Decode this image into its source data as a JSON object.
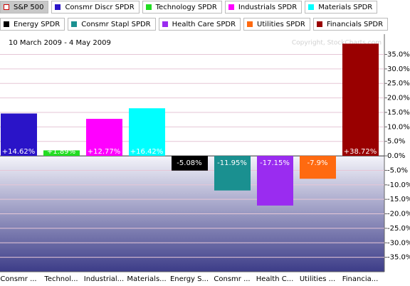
{
  "chart_data": {
    "type": "bar",
    "subtitle": "10 March 2009 - 4 May 2009",
    "watermark": "Copyright, StockCharts.com",
    "legend": [
      {
        "name": "S&P 500",
        "color": "#cc0000",
        "hollow": true,
        "selected": true
      },
      {
        "name": "Consmr Discr SPDR",
        "color": "#2a14c8"
      },
      {
        "name": "Technology SPDR",
        "color": "#22dd22"
      },
      {
        "name": "Industrials SPDR",
        "color": "#ff00ff"
      },
      {
        "name": "Materials SPDR",
        "color": "#00ffff"
      },
      {
        "name": "Energy SPDR",
        "color": "#000000"
      },
      {
        "name": "Consmr Stapl SPDR",
        "color": "#1a9090"
      },
      {
        "name": "Health Care SPDR",
        "color": "#9a2cf0"
      },
      {
        "name": "Utilities SPDR",
        "color": "#ff6a10"
      },
      {
        "name": "Financials SPDR",
        "color": "#990000"
      }
    ],
    "categories": [
      "Consmr ...",
      "Technol...",
      "Industrial...",
      "Materials...",
      "Energy S...",
      "Consmr ...",
      "Health C...",
      "Utilities ...",
      "Financia..."
    ],
    "values": [
      14.62,
      1.89,
      12.77,
      16.42,
      -5.08,
      -11.95,
      -17.15,
      -7.9,
      38.72
    ],
    "value_labels": [
      "+14.62%",
      "+1.89%",
      "+12.77%",
      "+16.42%",
      "-5.08%",
      "-11.95%",
      "-17.15%",
      "-7.9%",
      "+38.72%"
    ],
    "colors": [
      "#2a14c8",
      "#22dd22",
      "#ff00ff",
      "#00ffff",
      "#000000",
      "#1a9090",
      "#9a2cf0",
      "#ff6a10",
      "#990000"
    ],
    "ylim": [
      -40,
      42
    ],
    "yticks": [
      {
        "value": 35,
        "label": "35.0%"
      },
      {
        "value": 30,
        "label": "30.0%"
      },
      {
        "value": 25,
        "label": "25.0%"
      },
      {
        "value": 20,
        "label": "20.0%"
      },
      {
        "value": 15,
        "label": "15.0%"
      },
      {
        "value": 10,
        "label": "10.0%"
      },
      {
        "value": 5,
        "label": "5.0%"
      },
      {
        "value": 0,
        "label": "0.0%"
      },
      {
        "value": -5,
        "label": "-5.0%"
      },
      {
        "value": -10,
        "label": "-10.0%"
      },
      {
        "value": -15,
        "label": "-15.0%"
      },
      {
        "value": -20,
        "label": "-20.0%"
      },
      {
        "value": -25,
        "label": "-25.0%"
      },
      {
        "value": -30,
        "label": "-30.0%"
      },
      {
        "value": -35,
        "label": "-35.0%"
      }
    ],
    "grid": true
  }
}
